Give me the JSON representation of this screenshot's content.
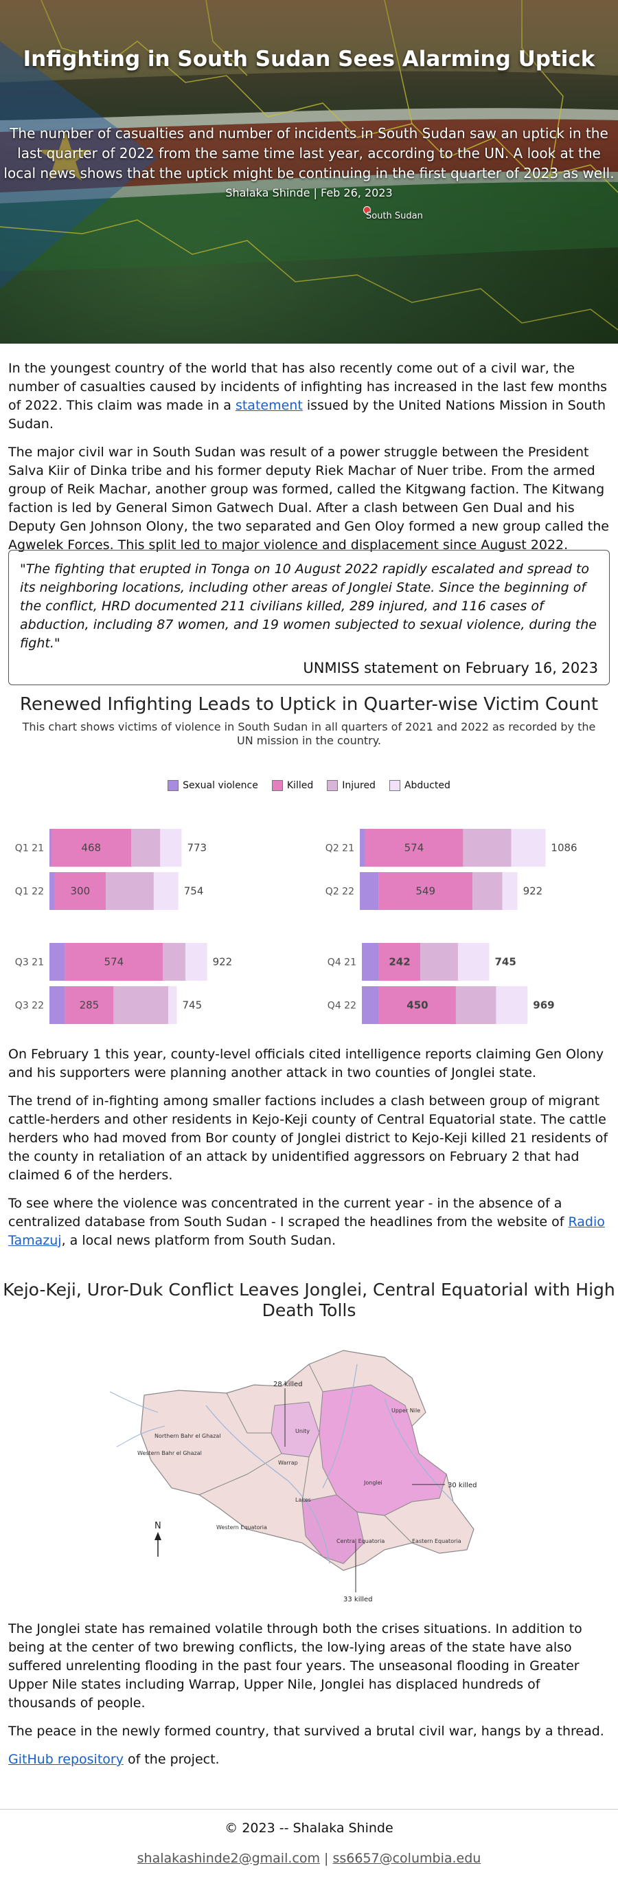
{
  "hero": {
    "title": "Infighting in South Sudan Sees Alarming Uptick",
    "subtitle": "The number of casualties and number of incidents in South Sudan saw an uptick in the last quarter of 2022 from the same time last year, according to the UN. A look at the local news shows that the uptick might be continuing in the first quarter of 2023 as well.",
    "byline": "Shalaka Shinde | Feb 26, 2023",
    "map_label": "South Sudan"
  },
  "intro": {
    "p1_before": "In the youngest country of the world that has also recently come out of a civil war, the number of casualties caused by incidents of infighting has increased in the last few months of 2022. This claim was made in a ",
    "p1_link": "statement",
    "p1_after": " issued by the United Nations Mission in South Sudan.",
    "p2": "The major civil war in South Sudan was result of a power struggle between the President Salva Kiir of Dinka tribe and his former deputy Riek Machar of Nuer tribe. From the armed group of Reik Machar, another group was formed, called the Kitgwang faction. The Kitwang faction is led by General Simon Gatwech Dual. After a clash between Gen Dual and his Deputy Gen Johnson Olony, the two separated and Gen Oloy formed a new group called the Agwelek Forces. This split led to major violence and displacement since August 2022."
  },
  "quote": {
    "text": "\"The fighting that erupted in Tonga on 10 August 2022 rapidly escalated and spread to its neighboring locations, including other areas of Jonglei State. Since the beginning of the conflict, HRD documented 211 civilians killed, 289 injured, and 116 cases of abduction, including 87 women, and 19 women subjected to sexual violence, during the fight.\"",
    "source": "UNMISS statement on February 16, 2023"
  },
  "chart_section": {
    "title": "Renewed Infighting Leads to Uptick in Quarter-wise Victim Count",
    "subtitle": "This chart shows victims of violence in South Sudan in all quarters of 2021 and 2022 as recorded by the UN mission in the country."
  },
  "chart_data": {
    "type": "bar",
    "stacked": true,
    "orientation": "horizontal",
    "legend": [
      "Sexual violence",
      "Killed",
      "Injured",
      "Abducted"
    ],
    "colors": {
      "Sexual violence": "#a98be0",
      "Killed": "#e37fbe",
      "Injured": "#d9b3d8",
      "Abducted": "#f0e3f9"
    },
    "panels": [
      {
        "name": "Q1",
        "bars": [
          {
            "label": "Q1 21",
            "sexual_violence": 10,
            "killed": 468,
            "injured": 170,
            "abducted": 125,
            "total": 773
          },
          {
            "label": "Q1 22",
            "sexual_violence": 30,
            "killed": 300,
            "injured": 280,
            "abducted": 144,
            "total": 754
          }
        ]
      },
      {
        "name": "Q2",
        "bars": [
          {
            "label": "Q2 21",
            "sexual_violence": 30,
            "killed": 574,
            "injured": 282,
            "abducted": 200,
            "total": 1086
          },
          {
            "label": "Q2 22",
            "sexual_violence": 110,
            "killed": 549,
            "injured": 175,
            "abducted": 88,
            "total": 922
          }
        ]
      },
      {
        "name": "Q3",
        "bars": [
          {
            "label": "Q3 21",
            "sexual_violence": 90,
            "killed": 574,
            "injured": 132,
            "abducted": 126,
            "total": 922
          },
          {
            "label": "Q3 22",
            "sexual_violence": 90,
            "killed": 285,
            "injured": 320,
            "abducted": 50,
            "total": 745
          }
        ]
      },
      {
        "name": "Q4",
        "bars": [
          {
            "label": "Q4 21",
            "sexual_violence": 100,
            "killed": 242,
            "injured": 220,
            "abducted": 183,
            "total": 745
          },
          {
            "label": "Q4 22",
            "sexual_violence": 100,
            "killed": 450,
            "injured": 235,
            "abducted": 184,
            "total": 969
          }
        ]
      }
    ]
  },
  "mid": {
    "p3": "On February 1 this year, county-level officials cited intelligence reports claiming Gen Olony and his supporters were planning another attack in two counties of Jonglei state.",
    "p4": "The trend of in-fighting among smaller factions includes a clash between group of migrant cattle-herders and other residents in Kejo-Keji county of Central Equatorial state. The cattle herders who had moved from Bor county of Jonglei district to Kejo-Keji killed 21 residents of the county in retaliation of an attack by unidentified aggressors on February 2 that had claimed 6 of the herders.",
    "p5_before": "To see where the violence was concentrated in the current year - in the absence of a centralized database from South Sudan - I scraped the headlines from the website of ",
    "p5_link": "Radio Tamazuj",
    "p5_after": ", a local news platform from South Sudan."
  },
  "map": {
    "title": "Kejo-Keji, Uror-Duk Conflict Leaves Jonglei, Central Equatorial with High Death Tolls",
    "callouts": [
      "28 killed",
      "30 killed",
      "33 killed"
    ],
    "north": "N",
    "regions": [
      "Upper Nile",
      "Northern Bahr el Ghazal",
      "Western Bahr el Ghazal",
      "Unity",
      "Warrap",
      "Jonglei",
      "Lakes",
      "Western Equatoria",
      "Central Equatoria",
      "Eastern Equatoria"
    ]
  },
  "outro": {
    "p6": "The Jonglei state has remained volatile through both the crises situations. In addition to being at the center of two brewing conflicts, the low-lying areas of the state have also suffered unrelenting flooding in the past four years. The unseasonal flooding in Greater Upper Nile states including Warrap, Upper Nile, Jonglei has displaced hundreds of thousands of people.",
    "p7": "The peace in the newly formed country, that survived a brutal civil war, hangs by a thread.",
    "repo_link": "GitHub repository",
    "repo_after": " of the project."
  },
  "footer": {
    "copyright": "© 2023 -- Shalaka Shinde",
    "email1": "shalakashinde2@gmail.com",
    "sep": " | ",
    "email2": "ss6657@columbia.edu"
  }
}
